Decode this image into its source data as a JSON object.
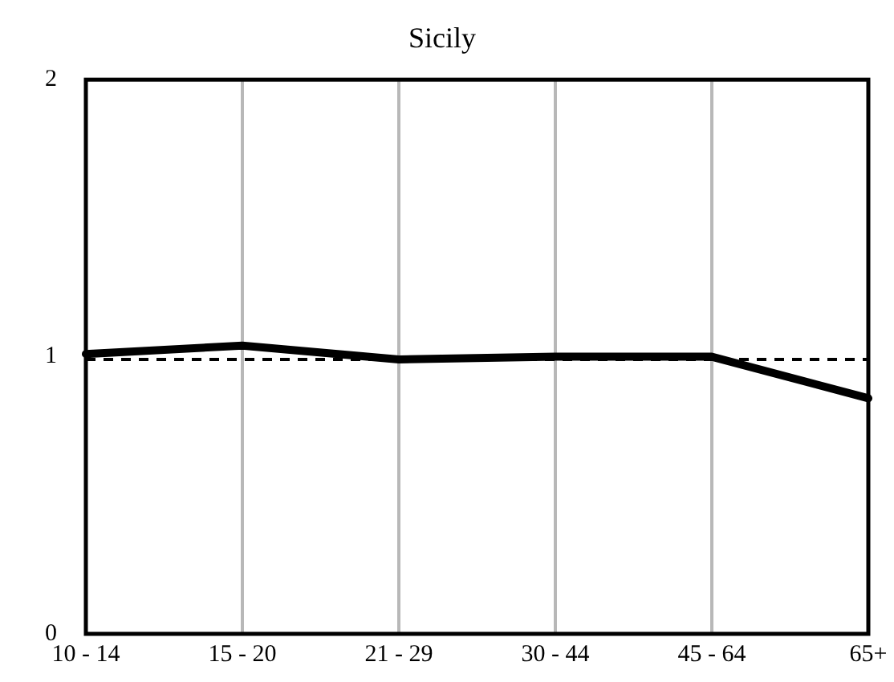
{
  "chart_data": {
    "type": "line",
    "title": "Sicily",
    "categories": [
      "10 - 14",
      "15 - 20",
      "21 - 29",
      "30 - 44",
      "45 - 64",
      "65+"
    ],
    "series": [
      {
        "color": "#000000",
        "values": [
          1.01,
          1.04,
          0.99,
          1.0,
          1.0,
          0.85
        ]
      }
    ],
    "ylim": [
      0,
      2
    ],
    "yticks": [
      0,
      1,
      2
    ],
    "grid": "x",
    "legend": false,
    "marker": "none",
    "line_style": "solid",
    "ref_lines": [
      {
        "axis": "y",
        "value": 0.99,
        "label": null,
        "color": "#000000",
        "line_style": "dashed"
      }
    ]
  }
}
